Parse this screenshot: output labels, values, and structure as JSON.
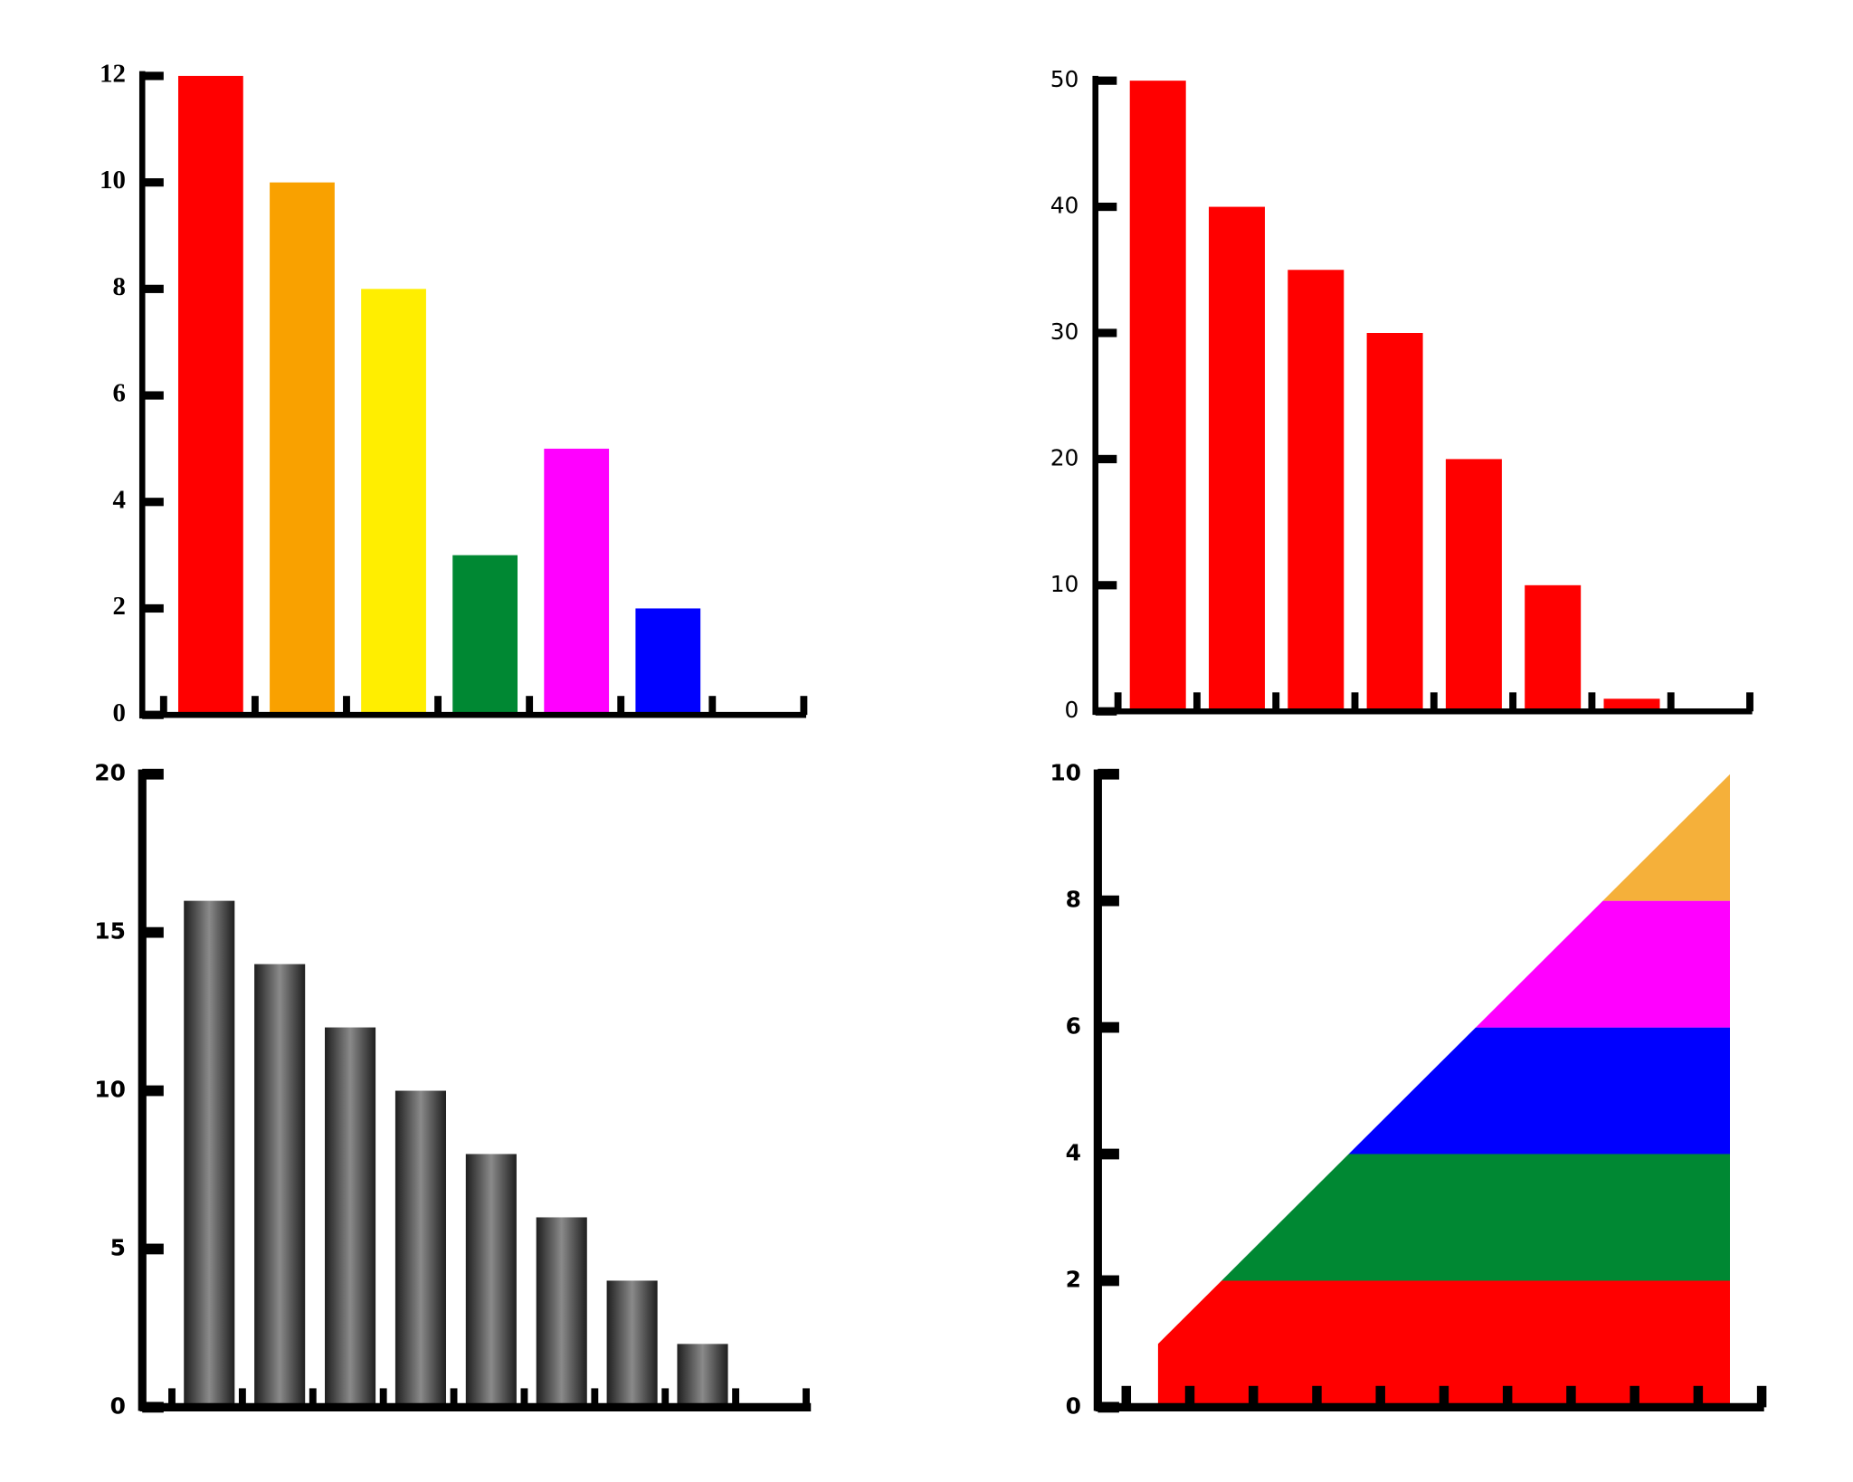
{
  "chart_data": [
    {
      "type": "bar",
      "categories": [
        null,
        null,
        null,
        null,
        null,
        null
      ],
      "values": [
        12,
        10,
        8,
        3,
        5,
        2
      ],
      "colors": [
        "#ff0000",
        "#f9a100",
        "#ffee00",
        "#008833",
        "#ff00ff",
        "#0000ff"
      ],
      "ylim": [
        0,
        12
      ],
      "yticks": [
        0,
        2,
        4,
        6,
        8,
        10,
        12
      ]
    },
    {
      "type": "bar",
      "categories": [
        null,
        null,
        null,
        null,
        null,
        null,
        null
      ],
      "values": [
        50,
        40,
        35,
        30,
        20,
        10,
        1
      ],
      "color": "#ff0000",
      "ylim": [
        0,
        50
      ],
      "yticks": [
        0,
        10,
        20,
        30,
        40,
        50
      ]
    },
    {
      "type": "bar",
      "categories": [
        null,
        null,
        null,
        null,
        null,
        null,
        null,
        null
      ],
      "values": [
        16,
        14,
        12,
        10,
        8,
        6,
        4,
        2
      ],
      "color": "gradient-gray",
      "ylim": [
        0,
        20
      ],
      "yticks": [
        0,
        5,
        10,
        15,
        20
      ]
    },
    {
      "type": "stacked_area",
      "x": [
        1,
        2,
        3,
        4,
        5,
        6,
        7,
        8,
        9,
        10
      ],
      "series": [
        {
          "color": "#ff0000",
          "values": [
            1,
            2,
            2,
            2,
            2,
            2,
            2,
            2,
            2,
            2
          ]
        },
        {
          "color": "#008833",
          "values": [
            0,
            0,
            1,
            2,
            2,
            2,
            2,
            2,
            2,
            2
          ]
        },
        {
          "color": "#0000ff",
          "values": [
            0,
            0,
            0,
            0,
            1,
            2,
            2,
            2,
            2,
            2
          ]
        },
        {
          "color": "#ff00ff",
          "values": [
            0,
            0,
            0,
            0,
            0,
            0,
            1,
            2,
            2,
            2
          ]
        },
        {
          "color": "#f5b03a",
          "values": [
            0,
            0,
            0,
            0,
            0,
            0,
            0,
            0,
            1,
            2
          ]
        }
      ],
      "xlim": [
        0.5,
        10.5
      ],
      "xticks": [
        0.5,
        1.5,
        2.5,
        3.5,
        4.5,
        5.5,
        6.5,
        7.5,
        8.5,
        9.5,
        10.5
      ],
      "ylim": [
        0,
        10
      ],
      "yticks": [
        0,
        2,
        4,
        6,
        8,
        10
      ]
    }
  ]
}
